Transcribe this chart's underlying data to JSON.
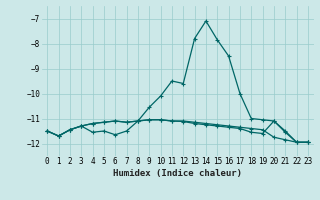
{
  "title": "",
  "xlabel": "Humidex (Indice chaleur)",
  "bg_color": "#cce8e8",
  "grid_color": "#99cccc",
  "line_color": "#006666",
  "xlim": [
    -0.5,
    23.5
  ],
  "ylim": [
    -12.5,
    -6.5
  ],
  "yticks": [
    -12,
    -11,
    -10,
    -9,
    -8,
    -7
  ],
  "xticks": [
    0,
    1,
    2,
    3,
    4,
    5,
    6,
    7,
    8,
    9,
    10,
    11,
    12,
    13,
    14,
    15,
    16,
    17,
    18,
    19,
    20,
    21,
    22,
    23
  ],
  "series1": [
    [
      0,
      -11.5
    ],
    [
      1,
      -11.7
    ],
    [
      2,
      -11.45
    ],
    [
      3,
      -11.3
    ],
    [
      4,
      -11.55
    ],
    [
      5,
      -11.5
    ],
    [
      6,
      -11.65
    ],
    [
      7,
      -11.5
    ],
    [
      8,
      -11.1
    ],
    [
      9,
      -10.55
    ],
    [
      10,
      -10.1
    ],
    [
      11,
      -9.5
    ],
    [
      12,
      -9.6
    ],
    [
      13,
      -7.8
    ],
    [
      14,
      -7.1
    ],
    [
      15,
      -7.85
    ],
    [
      16,
      -8.5
    ],
    [
      17,
      -10.0
    ],
    [
      18,
      -11.0
    ],
    [
      19,
      -11.05
    ],
    [
      20,
      -11.1
    ],
    [
      21,
      -11.5
    ],
    [
      22,
      -11.95
    ],
    [
      23,
      -11.95
    ]
  ],
  "series2": [
    [
      0,
      -11.5
    ],
    [
      1,
      -11.7
    ],
    [
      2,
      -11.45
    ],
    [
      3,
      -11.3
    ],
    [
      4,
      -11.2
    ],
    [
      5,
      -11.15
    ],
    [
      6,
      -11.1
    ],
    [
      7,
      -11.15
    ],
    [
      8,
      -11.1
    ],
    [
      9,
      -11.05
    ],
    [
      10,
      -11.05
    ],
    [
      11,
      -11.1
    ],
    [
      12,
      -11.1
    ],
    [
      13,
      -11.15
    ],
    [
      14,
      -11.2
    ],
    [
      15,
      -11.25
    ],
    [
      16,
      -11.3
    ],
    [
      17,
      -11.35
    ],
    [
      18,
      -11.4
    ],
    [
      19,
      -11.45
    ],
    [
      20,
      -11.75
    ],
    [
      21,
      -11.85
    ],
    [
      22,
      -11.95
    ],
    [
      23,
      -11.95
    ]
  ],
  "series3": [
    [
      0,
      -11.5
    ],
    [
      1,
      -11.7
    ],
    [
      2,
      -11.45
    ],
    [
      3,
      -11.3
    ],
    [
      4,
      -11.2
    ],
    [
      5,
      -11.15
    ],
    [
      6,
      -11.1
    ],
    [
      7,
      -11.15
    ],
    [
      8,
      -11.1
    ],
    [
      9,
      -11.05
    ],
    [
      10,
      -11.05
    ],
    [
      11,
      -11.1
    ],
    [
      12,
      -11.12
    ],
    [
      13,
      -11.2
    ],
    [
      14,
      -11.25
    ],
    [
      15,
      -11.3
    ],
    [
      16,
      -11.35
    ],
    [
      17,
      -11.4
    ],
    [
      18,
      -11.55
    ],
    [
      19,
      -11.6
    ],
    [
      20,
      -11.1
    ],
    [
      21,
      -11.55
    ],
    [
      22,
      -11.95
    ],
    [
      23,
      -11.95
    ]
  ]
}
